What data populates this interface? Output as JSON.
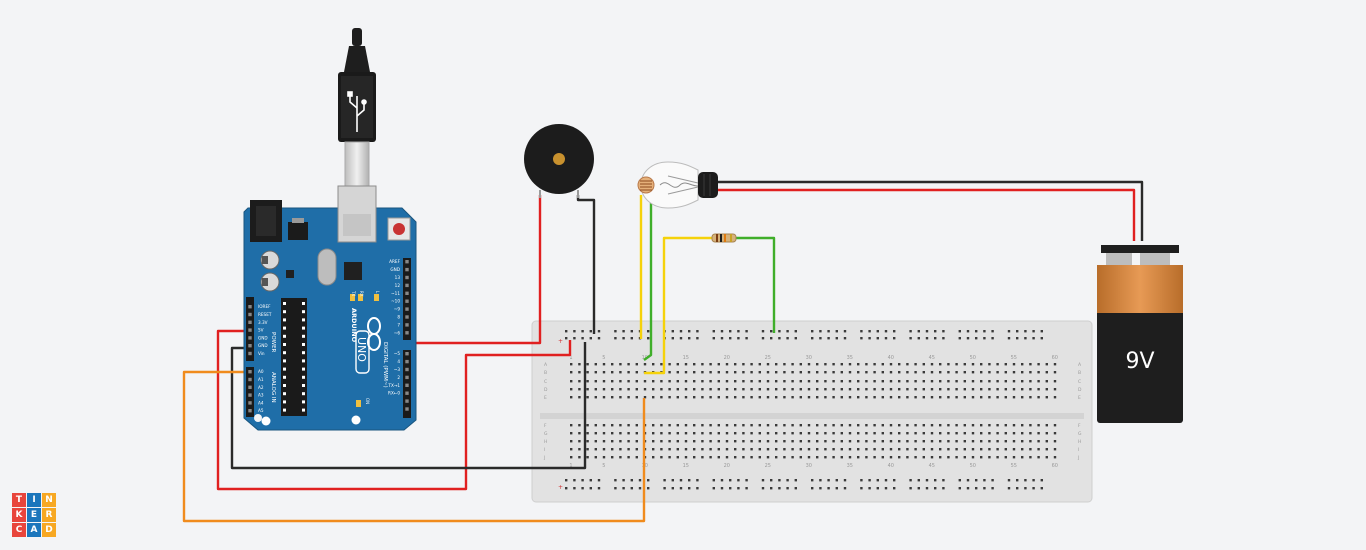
{
  "app": {
    "brand_letters": [
      "T",
      "I",
      "N",
      "K",
      "E",
      "R",
      "C",
      "A",
      "D"
    ],
    "brand_colors": [
      "#e8453c",
      "#1b76bc",
      "#f7a823",
      "#e8453c",
      "#1b76bc",
      "#f7a823",
      "#e8453c",
      "#1b76bc",
      "#f7a823"
    ]
  },
  "arduino": {
    "model_label": "UNO",
    "brand_label": "ARDUINO",
    "digital_header": "DIGITAL (PWM~)",
    "power_header": "POWER",
    "analog_header": "ANALOG IN",
    "on_label": "ON",
    "tx_label": "TX",
    "rx_label": "RX",
    "l_label": "L",
    "power_pins": [
      "IOREF",
      "RESET",
      "3.3V",
      "5V",
      "GND",
      "GND",
      "Vin"
    ],
    "analog_pins": [
      "A0",
      "A1",
      "A2",
      "A3",
      "A4",
      "A5"
    ],
    "digital_pins": [
      "AREF",
      "GND",
      "13",
      "12",
      "~11",
      "~10",
      "~9",
      "8",
      "7",
      "~6",
      "~5",
      "4",
      "~3",
      "2",
      "TX→1",
      "RX←0"
    ]
  },
  "battery": {
    "label": "9V"
  },
  "breadboard": {
    "column_numbers": [
      "1",
      "5",
      "10",
      "15",
      "20",
      "25",
      "30",
      "35",
      "40",
      "45",
      "50",
      "55",
      "60"
    ],
    "row_letters_top": [
      "A",
      "B",
      "C",
      "D",
      "E"
    ],
    "row_letters_bottom": [
      "F",
      "G",
      "H",
      "I",
      "J"
    ],
    "rail_plus": "+",
    "rail_minus": "-"
  },
  "wire_colors": {
    "red": "#e02020",
    "black": "#2a2a2a",
    "orange": "#f08b1d",
    "yellow": "#f5d20a",
    "green": "#3fae2a"
  }
}
